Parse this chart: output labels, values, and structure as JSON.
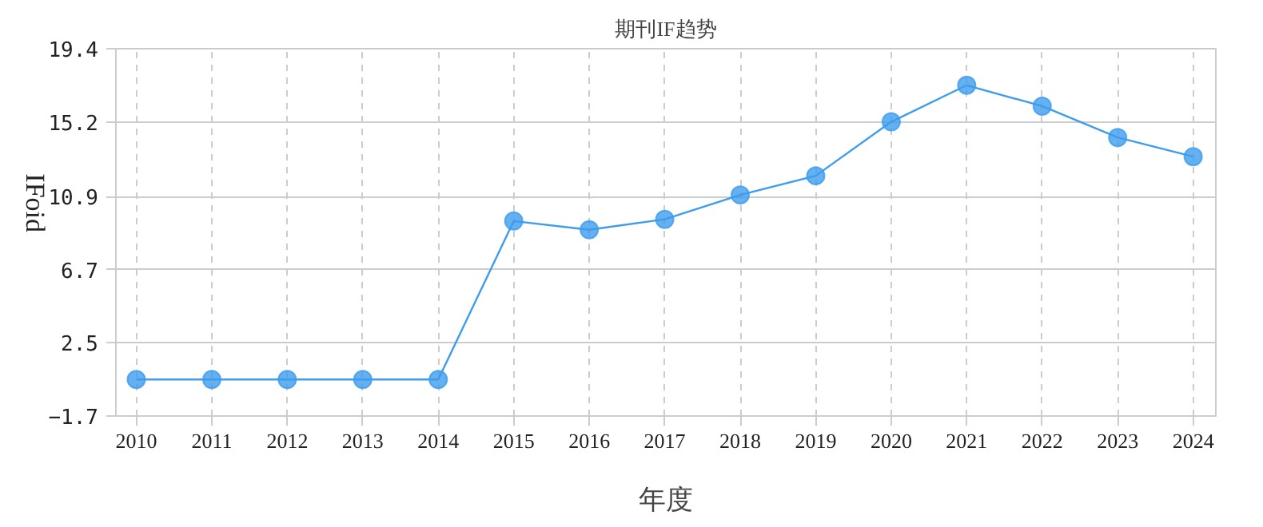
{
  "chart_data": {
    "type": "line",
    "title": "期刊IF趋势",
    "xlabel": "年度",
    "ylabel": "IFoid",
    "categories": [
      "2010",
      "2011",
      "2012",
      "2013",
      "2014",
      "2015",
      "2016",
      "2017",
      "2018",
      "2019",
      "2020",
      "2021",
      "2022",
      "2023",
      "2024"
    ],
    "series": [
      {
        "color": "#3d9cee",
        "values": [
          0.4,
          0.4,
          0.4,
          0.4,
          0.4,
          9.5,
          9.0,
          9.6,
          11.0,
          12.1,
          15.2,
          17.3,
          16.1,
          14.3,
          13.2
        ]
      }
    ],
    "ylim": [
      -1.7,
      19.4
    ],
    "yticks": [
      -1.7,
      2.5,
      6.7,
      10.9,
      15.2,
      19.4
    ],
    "grid": true,
    "marker": "circle",
    "line_style": "solid"
  }
}
